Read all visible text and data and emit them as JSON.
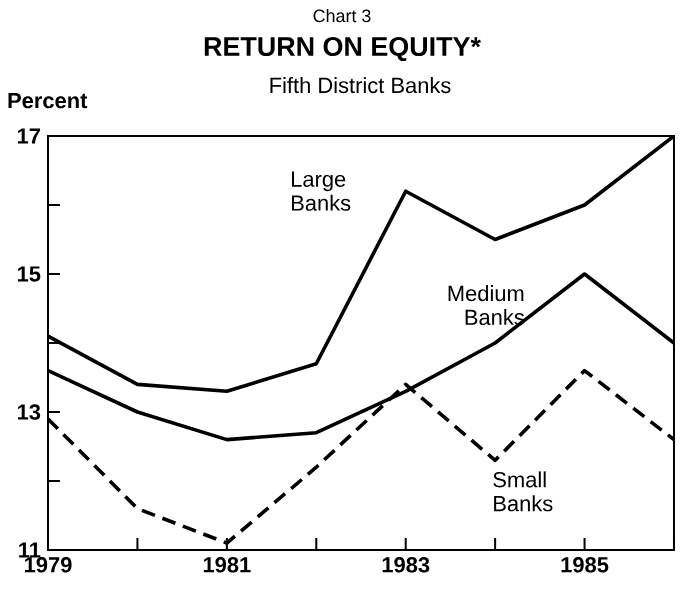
{
  "chart_data": {
    "type": "line",
    "title": "RETURN ON EQUITY*",
    "subtitle": "Fifth District Banks",
    "ylabel": "Percent",
    "annotations": [
      "Chart 3"
    ],
    "x": [
      1979,
      1980,
      1981,
      1982,
      1983,
      1984,
      1985,
      1986
    ],
    "series": [
      {
        "name": "Large Banks",
        "color": "#000000",
        "line_style": "solid",
        "values": [
          14.1,
          13.4,
          13.3,
          13.7,
          16.2,
          15.5,
          16.0,
          17.0
        ]
      },
      {
        "name": "Medium Banks",
        "color": "#000000",
        "line_style": "solid",
        "values": [
          13.6,
          13.0,
          12.6,
          12.7,
          13.3,
          14.0,
          15.0,
          14.0
        ]
      },
      {
        "name": "Small Banks",
        "color": "#000000",
        "line_style": "dashed",
        "values": [
          12.9,
          11.6,
          11.1,
          12.2,
          13.4,
          12.3,
          13.6,
          12.6
        ]
      }
    ],
    "xlim": [
      1979,
      1986
    ],
    "ylim": [
      11,
      17
    ],
    "xticks": [
      1979,
      {
        "value": 1980,
        "label": null
      },
      1981,
      {
        "value": 1982,
        "label": null
      },
      1983,
      {
        "value": 1984,
        "label": null
      },
      1985,
      {
        "value": 1986,
        "label": null
      }
    ],
    "yticks": [
      11,
      {
        "value": 12,
        "label": null
      },
      13,
      {
        "value": 14,
        "label": null
      },
      15,
      {
        "value": 16,
        "label": null
      },
      17
    ],
    "marker": "none"
  }
}
